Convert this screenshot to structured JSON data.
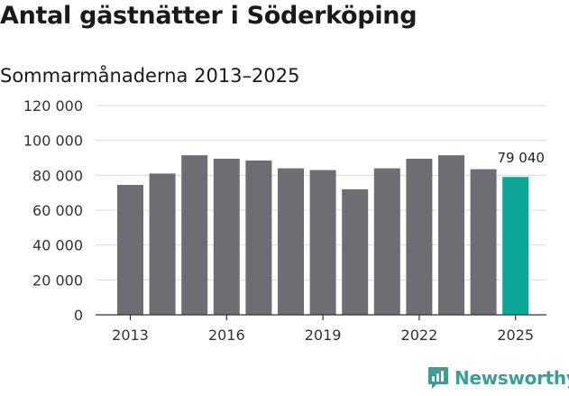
{
  "title": "Antal gästnätter i Söderköping",
  "subtitle": "Sommarmånaderna 2013–2025",
  "brand": {
    "name": "Newsworthy",
    "color": "#3a9f97",
    "icon": "newsworthy-logo-icon"
  },
  "colors": {
    "bar": "#6e6d73",
    "highlight": "#0aa697",
    "grid": "#dcdcdc",
    "axis": "#333333"
  },
  "chart_data": {
    "type": "bar",
    "categories": [
      "2013",
      "2014",
      "2015",
      "2016",
      "2017",
      "2018",
      "2019",
      "2020",
      "2021",
      "2022",
      "2023",
      "2024",
      "2025"
    ],
    "values": [
      74500,
      81000,
      91500,
      89500,
      88500,
      84000,
      83000,
      72000,
      84000,
      89500,
      91500,
      83500,
      79040
    ],
    "highlight_index": 12,
    "data_labels": [
      {
        "index": 12,
        "text": "79 040"
      }
    ],
    "x_tick_labels": [
      "2013",
      "2016",
      "2019",
      "2022",
      "2025"
    ],
    "y_tick_labels": [
      "0",
      "20 000",
      "40 000",
      "60 000",
      "80 000",
      "100 000",
      "120 000"
    ],
    "y_ticks": [
      0,
      20000,
      40000,
      60000,
      80000,
      100000,
      120000
    ],
    "ylim": [
      0,
      120000
    ],
    "grid": true,
    "legend": "none"
  }
}
